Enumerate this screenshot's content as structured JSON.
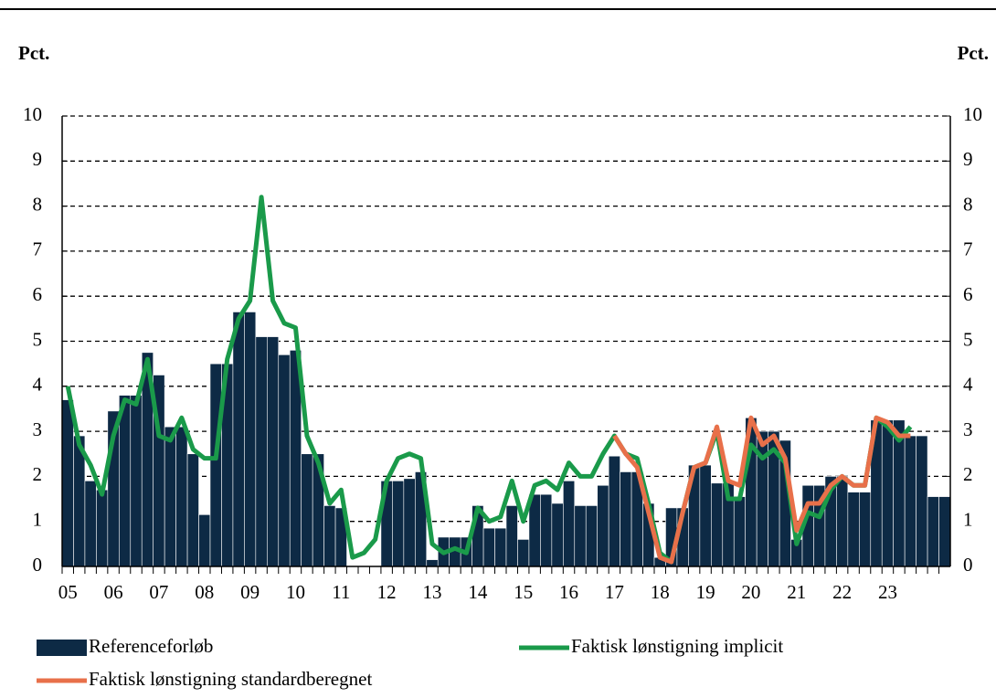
{
  "chart_data": {
    "type": "bar",
    "y_label": "Pct.",
    "y2_label": "Pct.",
    "categories": [
      "05",
      null,
      null,
      null,
      "06",
      null,
      null,
      null,
      "07",
      null,
      null,
      null,
      "08",
      null,
      null,
      null,
      "09",
      null,
      null,
      null,
      "10",
      null,
      null,
      null,
      "11",
      null,
      null,
      null,
      "12",
      null,
      null,
      null,
      "13",
      null,
      null,
      null,
      "14",
      null,
      null,
      null,
      "15",
      null,
      null,
      null,
      "16",
      null,
      null,
      null,
      "17",
      null,
      null,
      null,
      "18",
      null,
      null,
      null,
      "19",
      null,
      null,
      null,
      "20",
      null,
      null,
      null,
      "21",
      null,
      null,
      null,
      "22",
      null,
      null,
      null,
      "23",
      null,
      null,
      null,
      null,
      null
    ],
    "series": [
      {
        "name": "Referenceforløb",
        "type": "bar",
        "color": "#0d2a45",
        "values": [
          3.7,
          2.9,
          1.9,
          1.7,
          3.45,
          3.8,
          3.8,
          4.75,
          4.25,
          3.1,
          3.1,
          2.5,
          1.15,
          4.5,
          4.5,
          5.65,
          5.65,
          5.1,
          5.1,
          4.7,
          4.8,
          2.5,
          2.5,
          1.35,
          1.3,
          0,
          0,
          0,
          1.9,
          1.9,
          1.95,
          2.1,
          0.15,
          0.65,
          0.65,
          0.65,
          1.35,
          0.85,
          0.85,
          1.35,
          0.6,
          1.6,
          1.6,
          1.4,
          1.9,
          1.35,
          1.35,
          1.8,
          2.45,
          2.1,
          2.1,
          1.4,
          0.2,
          1.3,
          1.3,
          2.25,
          2.25,
          1.85,
          1.85,
          1.55,
          3.3,
          3.0,
          3.0,
          2.8,
          0.6,
          1.8,
          1.8,
          2.0,
          2.0,
          1.65,
          1.65,
          3.25,
          3.25,
          3.25,
          2.9,
          2.9,
          1.55,
          1.55
        ]
      },
      {
        "name": "Faktisk lønstigning implicit",
        "type": "line",
        "color": "#1a9a4a",
        "values": [
          4.0,
          2.7,
          2.25,
          1.6,
          2.9,
          3.7,
          3.6,
          4.6,
          2.9,
          2.8,
          3.3,
          2.6,
          2.4,
          2.4,
          4.6,
          5.5,
          5.9,
          8.2,
          5.9,
          5.4,
          5.3,
          2.9,
          2.3,
          1.4,
          1.7,
          0.2,
          0.3,
          0.6,
          1.9,
          2.4,
          2.5,
          2.4,
          0.5,
          0.3,
          0.4,
          0.3,
          1.3,
          1.0,
          1.1,
          1.9,
          1.0,
          1.8,
          1.9,
          1.7,
          2.3,
          2.0,
          2.0,
          2.5,
          2.9,
          2.5,
          2.4,
          1.4,
          0.3,
          0.1,
          1.2,
          2.2,
          2.3,
          3.0,
          1.5,
          1.5,
          2.7,
          2.4,
          2.6,
          2.3,
          0.5,
          1.2,
          1.1,
          1.7,
          2.0,
          1.8,
          1.8,
          3.3,
          3.1,
          2.8,
          3.1,
          null,
          null,
          null
        ]
      },
      {
        "name": "Faktisk lønstigning standardberegnet",
        "type": "line",
        "color": "#e8704a",
        "values": [
          null,
          null,
          null,
          null,
          null,
          null,
          null,
          null,
          null,
          null,
          null,
          null,
          null,
          null,
          null,
          null,
          null,
          null,
          null,
          null,
          null,
          null,
          null,
          null,
          null,
          null,
          null,
          null,
          null,
          null,
          null,
          null,
          null,
          null,
          null,
          null,
          null,
          null,
          null,
          null,
          null,
          null,
          null,
          null,
          null,
          null,
          null,
          null,
          2.9,
          2.5,
          2.2,
          1.2,
          0.2,
          0.1,
          1.2,
          2.2,
          2.3,
          3.1,
          1.9,
          1.8,
          3.3,
          2.7,
          2.9,
          2.4,
          0.8,
          1.4,
          1.4,
          1.8,
          2.0,
          1.8,
          1.8,
          3.3,
          3.2,
          2.9,
          2.9,
          null,
          null,
          null
        ]
      }
    ],
    "ylim": [
      0,
      10
    ],
    "yticks": [
      0,
      1,
      2,
      3,
      4,
      5,
      6,
      7,
      8,
      9,
      10
    ],
    "y2lim": [
      0,
      10
    ],
    "y2ticks": [
      0,
      1,
      2,
      3,
      4,
      5,
      6,
      7,
      8,
      9,
      10
    ],
    "grid": true
  }
}
